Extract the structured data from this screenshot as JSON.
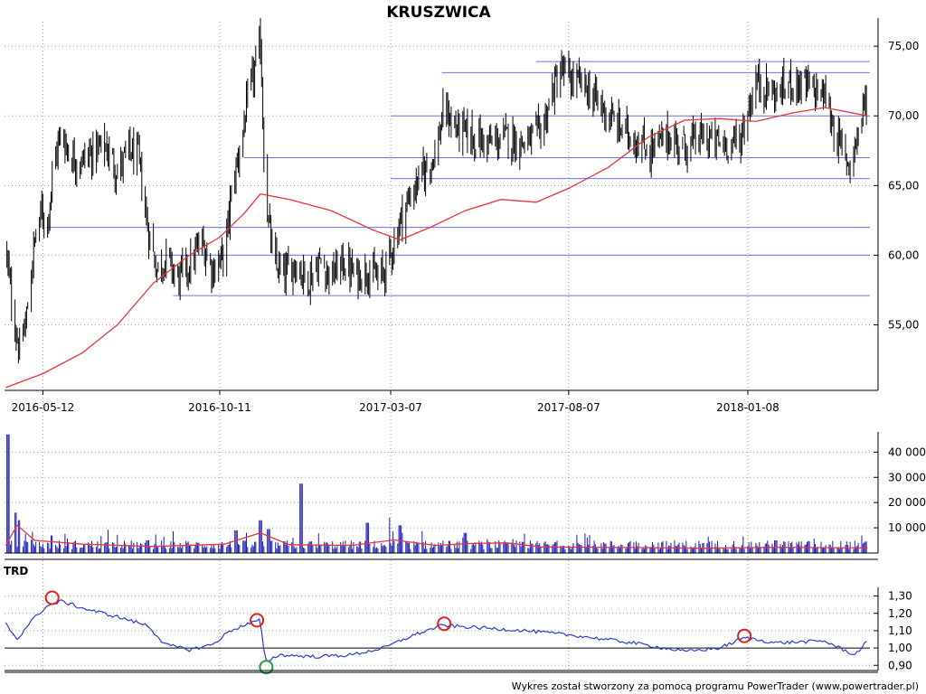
{
  "title": "KRUSZWICA",
  "footer": "Wykres został stworzony za pomocą programu PowerTrader (www.powertrader.pl)",
  "colors": {
    "candle": "#000000",
    "ma": "#e8343c",
    "level": "#6e6ef0",
    "volume": "#1a1ab4",
    "trd": "#2a3cc8",
    "grid": "#999999",
    "circle_peak": "#e02020",
    "circle_trough": "#20a040"
  },
  "chart_data": [
    {
      "type": "line",
      "name": "price",
      "title": "KRUSZWICA",
      "x_ticks": [
        "2016-05-12",
        "2016-10-11",
        "2017-03-07",
        "2017-08-07",
        "2018-01-08"
      ],
      "y_ticks": [
        "55,00",
        "60,00",
        "65,00",
        "70,00",
        "75,00"
      ],
      "ylim": [
        50.3,
        76.5
      ],
      "grid": true,
      "horizontal_levels": [
        {
          "y": 57.1,
          "start": "2016-09-01",
          "end": "2018-06-01"
        },
        {
          "y": 60.0,
          "start": "2016-08-15",
          "end": "2018-06-01"
        },
        {
          "y": 62.0,
          "start": "2016-05-15",
          "end": "2018-06-01"
        },
        {
          "y": 65.5,
          "start": "2017-03-07",
          "end": "2018-06-01"
        },
        {
          "y": 67.0,
          "start": "2016-11-01",
          "end": "2018-06-01"
        },
        {
          "y": 70.0,
          "start": "2017-03-07",
          "end": "2018-06-01"
        },
        {
          "y": 73.1,
          "start": "2017-04-20",
          "end": "2018-06-01"
        },
        {
          "y": 73.9,
          "start": "2017-07-10",
          "end": "2018-06-01"
        }
      ],
      "price_path": [
        [
          "2016-04-10",
          60.5
        ],
        [
          "2016-04-16",
          56.0
        ],
        [
          "2016-04-22",
          53.0
        ],
        [
          "2016-04-28",
          55.5
        ],
        [
          "2016-05-04",
          60.5
        ],
        [
          "2016-05-10",
          63.0
        ],
        [
          "2016-05-16",
          62.5
        ],
        [
          "2016-05-22",
          67.0
        ],
        [
          "2016-05-28",
          68.8
        ],
        [
          "2016-06-05",
          67.0
        ],
        [
          "2016-06-15",
          66.8
        ],
        [
          "2016-06-25",
          67.5
        ],
        [
          "2016-07-05",
          67.8
        ],
        [
          "2016-07-15",
          66.0
        ],
        [
          "2016-07-25",
          67.5
        ],
        [
          "2016-08-02",
          67.0
        ],
        [
          "2016-08-10",
          62.0
        ],
        [
          "2016-08-18",
          59.0
        ],
        [
          "2016-08-26",
          59.8
        ],
        [
          "2016-09-05",
          58.3
        ],
        [
          "2016-09-15",
          59.2
        ],
        [
          "2016-09-25",
          61.0
        ],
        [
          "2016-10-05",
          59.0
        ],
        [
          "2016-10-15",
          60.0
        ],
        [
          "2016-10-22",
          65.0
        ],
        [
          "2016-10-29",
          68.0
        ],
        [
          "2016-11-05",
          71.5
        ],
        [
          "2016-11-12",
          74.0
        ],
        [
          "2016-11-15",
          75.4
        ],
        [
          "2016-11-19",
          64.5
        ],
        [
          "2016-11-26",
          59.5
        ],
        [
          "2016-12-05",
          58.5
        ],
        [
          "2016-12-15",
          59.5
        ],
        [
          "2016-12-25",
          58.2
        ],
        [
          "2017-01-05",
          59.5
        ],
        [
          "2017-01-15",
          58.5
        ],
        [
          "2017-01-25",
          59.5
        ],
        [
          "2017-02-05",
          58.5
        ],
        [
          "2017-02-15",
          59.0
        ],
        [
          "2017-02-25",
          58.2
        ],
        [
          "2017-03-05",
          59.5
        ],
        [
          "2017-03-15",
          62.5
        ],
        [
          "2017-03-25",
          64.5
        ],
        [
          "2017-04-05",
          66.0
        ],
        [
          "2017-04-15",
          67.5
        ],
        [
          "2017-04-22",
          70.5
        ],
        [
          "2017-05-01",
          69.2
        ],
        [
          "2017-05-15",
          68.5
        ],
        [
          "2017-06-01",
          68.0
        ],
        [
          "2017-06-15",
          68.5
        ],
        [
          "2017-07-01",
          68.0
        ],
        [
          "2017-07-15",
          69.0
        ],
        [
          "2017-07-25",
          72.0
        ],
        [
          "2017-08-01",
          73.2
        ],
        [
          "2017-08-10",
          72.5
        ],
        [
          "2017-08-20",
          72.2
        ],
        [
          "2017-09-01",
          71.0
        ],
        [
          "2017-09-15",
          69.5
        ],
        [
          "2017-10-01",
          68.5
        ],
        [
          "2017-10-15",
          67.5
        ],
        [
          "2017-11-01",
          68.5
        ],
        [
          "2017-11-15",
          67.8
        ],
        [
          "2017-12-01",
          68.5
        ],
        [
          "2017-12-15",
          68.0
        ],
        [
          "2018-01-01",
          68.2
        ],
        [
          "2018-01-15",
          72.5
        ],
        [
          "2018-02-01",
          71.5
        ],
        [
          "2018-02-15",
          72.5
        ],
        [
          "2018-03-01",
          72.0
        ],
        [
          "2018-03-15",
          71.5
        ],
        [
          "2018-03-25",
          68.5
        ],
        [
          "2018-04-05",
          66.5
        ],
        [
          "2018-04-15",
          69.5
        ],
        [
          "2018-04-21",
          72.0
        ]
      ],
      "moving_average": [
        [
          "2016-04-10",
          50.5
        ],
        [
          "2016-05-12",
          51.5
        ],
        [
          "2016-06-15",
          53.0
        ],
        [
          "2016-07-15",
          55.0
        ],
        [
          "2016-08-15",
          58.0
        ],
        [
          "2016-09-15",
          60.0
        ],
        [
          "2016-10-11",
          61.3
        ],
        [
          "2016-11-01",
          63.0
        ],
        [
          "2016-11-15",
          64.4
        ],
        [
          "2016-12-10",
          64.0
        ],
        [
          "2017-01-15",
          63.2
        ],
        [
          "2017-02-20",
          61.8
        ],
        [
          "2017-03-15",
          61.1
        ],
        [
          "2017-04-10",
          62.0
        ],
        [
          "2017-05-10",
          63.2
        ],
        [
          "2017-06-10",
          64.0
        ],
        [
          "2017-07-10",
          63.8
        ],
        [
          "2017-08-07",
          64.8
        ],
        [
          "2017-09-10",
          66.3
        ],
        [
          "2017-10-15",
          68.5
        ],
        [
          "2017-11-15",
          69.7
        ],
        [
          "2017-12-15",
          69.8
        ],
        [
          "2018-01-15",
          69.6
        ],
        [
          "2018-02-15",
          70.2
        ],
        [
          "2018-03-15",
          70.6
        ],
        [
          "2018-04-21",
          70.0
        ]
      ]
    },
    {
      "type": "bar",
      "name": "volume",
      "y_ticks": [
        "10 000",
        "20 000",
        "30 000",
        "40 000"
      ],
      "ylim": [
        0,
        48000
      ],
      "grid": true,
      "notable_bars": [
        [
          "2016-04-12",
          47000
        ],
        [
          "2016-04-18",
          16000
        ],
        [
          "2016-04-22",
          13000
        ],
        [
          "2016-05-20",
          7000
        ],
        [
          "2016-08-10",
          5000
        ],
        [
          "2016-10-25",
          9000
        ],
        [
          "2016-11-15",
          13000
        ],
        [
          "2016-11-22",
          9500
        ],
        [
          "2016-12-20",
          27500
        ],
        [
          "2017-02-15",
          12000
        ],
        [
          "2017-03-05",
          14000
        ],
        [
          "2017-03-15",
          11000
        ],
        [
          "2017-05-10",
          8000
        ],
        [
          "2017-06-15",
          4000
        ],
        [
          "2018-02-01",
          5000
        ],
        [
          "2018-04-15",
          7000
        ]
      ],
      "volume_average": [
        [
          "2016-04-10",
          3000
        ],
        [
          "2016-04-20",
          11000
        ],
        [
          "2016-05-05",
          5000
        ],
        [
          "2016-06-15",
          3500
        ],
        [
          "2016-08-15",
          2600
        ],
        [
          "2016-10-15",
          3500
        ],
        [
          "2016-11-15",
          8000
        ],
        [
          "2016-12-10",
          3300
        ],
        [
          "2017-02-01",
          3000
        ],
        [
          "2017-03-10",
          5200
        ],
        [
          "2017-04-15",
          3000
        ],
        [
          "2017-05-15",
          3800
        ],
        [
          "2017-06-15",
          4000
        ],
        [
          "2017-07-15",
          2400
        ],
        [
          "2017-10-01",
          2200
        ],
        [
          "2017-12-01",
          1900
        ],
        [
          "2018-02-01",
          2300
        ],
        [
          "2018-04-21",
          2000
        ]
      ]
    },
    {
      "type": "line",
      "name": "TRD",
      "title": "TRD",
      "y_ticks": [
        "0,90",
        "1,00",
        "1,10",
        "1,20",
        "1,30"
      ],
      "ylim": [
        0.87,
        1.35
      ],
      "reference_line": 1.0,
      "grid": true,
      "series": [
        [
          "2016-04-10",
          1.14
        ],
        [
          "2016-04-20",
          1.05
        ],
        [
          "2016-05-01",
          1.15
        ],
        [
          "2016-05-15",
          1.24
        ],
        [
          "2016-05-28",
          1.27
        ],
        [
          "2016-06-15",
          1.23
        ],
        [
          "2016-07-15",
          1.18
        ],
        [
          "2016-08-10",
          1.13
        ],
        [
          "2016-08-25",
          1.02
        ],
        [
          "2016-09-15",
          0.99
        ],
        [
          "2016-10-05",
          1.02
        ],
        [
          "2016-10-20",
          1.1
        ],
        [
          "2016-11-05",
          1.14
        ],
        [
          "2016-11-15",
          1.16
        ],
        [
          "2016-11-19",
          0.92
        ],
        [
          "2016-12-01",
          0.96
        ],
        [
          "2017-01-01",
          0.95
        ],
        [
          "2017-02-01",
          0.96
        ],
        [
          "2017-03-01",
          1.0
        ],
        [
          "2017-03-25",
          1.07
        ],
        [
          "2017-04-20",
          1.13
        ],
        [
          "2017-05-15",
          1.12
        ],
        [
          "2017-07-01",
          1.1
        ],
        [
          "2017-08-15",
          1.07
        ],
        [
          "2017-10-01",
          1.03
        ],
        [
          "2017-11-15",
          0.98
        ],
        [
          "2017-12-15",
          1.0
        ],
        [
          "2018-01-05",
          1.06
        ],
        [
          "2018-02-01",
          1.03
        ],
        [
          "2018-03-15",
          1.04
        ],
        [
          "2018-04-10",
          0.96
        ],
        [
          "2018-04-21",
          1.04
        ]
      ],
      "peak_markers": [
        [
          "2016-05-20",
          1.29
        ],
        [
          "2016-11-12",
          1.16
        ],
        [
          "2017-04-22",
          1.14
        ],
        [
          "2018-01-05",
          1.07
        ]
      ],
      "trough_markers": [
        [
          "2016-11-20",
          0.89
        ]
      ]
    }
  ]
}
